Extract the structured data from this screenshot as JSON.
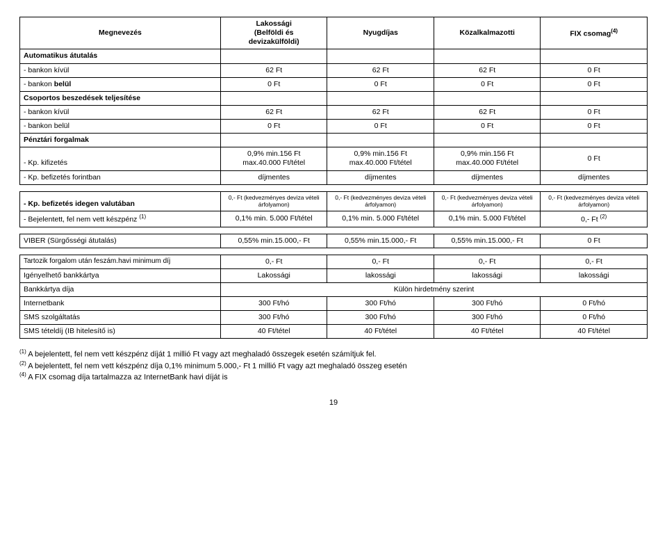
{
  "headers": {
    "col0": "Megnevezés",
    "col1": "Lakossági\n(Belföldi és\ndevizakülföldi)",
    "col2": "Nyugdíjas",
    "col3": "Közalkalmazotti",
    "col4": "FIX csomag",
    "col4_sup": "(4)"
  },
  "section1": "Automatikus átutalás",
  "row_bk1": {
    "label": " - bankon kívül",
    "v": [
      "62 Ft",
      "62 Ft",
      "62 Ft",
      "0 Ft"
    ]
  },
  "row_bb1": {
    "label": " - bankon ",
    "bold": "belül",
    "v": [
      "0 Ft",
      "0 Ft",
      "0 Ft",
      "0 Ft"
    ]
  },
  "section2": "Csoportos beszedések teljesítése",
  "row_bk2": {
    "label": " - bankon kívül",
    "v": [
      "62 Ft",
      "62 Ft",
      "62 Ft",
      "0 Ft"
    ]
  },
  "row_bb2": {
    "label": " - bankon belül",
    "v": [
      "0 Ft",
      "0 Ft",
      "0 Ft",
      "0 Ft"
    ]
  },
  "section3": "Pénztári forgalmak",
  "row_kif": {
    "label": " - Kp. kifizetés",
    "v": [
      "0,9% min.156 Ft\nmax.40.000 Ft/tétel",
      "0,9% min.156 Ft\nmax.40.000 Ft/tétel",
      "0,9% min.156 Ft\nmax.40.000 Ft/tétel",
      "0 Ft"
    ]
  },
  "row_befft": {
    "label": " - Kp. befizetés forintban",
    "v": [
      "díjmentes",
      "díjmentes",
      "díjmentes",
      "díjmentes"
    ]
  },
  "row_befiv": {
    "label": " - Kp. befizetés idegen valutában",
    "v": [
      "0,- Ft (kedvezményes deviza vételi árfolyamon)",
      "0,- Ft (kedvezményes deviza vételi árfolyamon)",
      "0,- Ft (kedvezményes deviza vételi árfolyamon)",
      "0,- Ft (kedvezményes deviza vételi árfolyamon)"
    ]
  },
  "row_bej": {
    "label": " -  Bejelentett, fel nem vett készpénz ",
    "sup": "(1)",
    "v": [
      "0,1% min. 5.000 Ft/tétel",
      "0,1% min. 5.000 Ft/tétel",
      "0,1% min. 5.000 Ft/tétel",
      "0,- Ft "
    ],
    "v4_sup": "(2)"
  },
  "row_viber": {
    "label": "VIBER (Sürgősségi átutalás)",
    "v": [
      "0,55% min.15.000,- Ft",
      "0,55% min.15.000,- Ft",
      "0,55% min.15.000,- Ft",
      "0 Ft"
    ]
  },
  "row_tart": {
    "label": "Tartozik forgalom után feszám.havi minimum díj",
    "v": [
      "0,- Ft",
      "0,- Ft",
      "0,- Ft",
      "0,- Ft"
    ]
  },
  "row_igeny": {
    "label": "Igényelhető bankkártya",
    "v": [
      "Lakossági",
      "lakossági",
      "lakossági",
      "lakossági"
    ]
  },
  "row_bankkartya": {
    "label": "Bankkártya díja",
    "span": "Külön hirdetmény szerint"
  },
  "row_internet": {
    "label": "Internetbank",
    "v": [
      "300 Ft/hó",
      "300 Ft/hó",
      "300 Ft/hó",
      "0 Ft/hó"
    ]
  },
  "row_sms": {
    "label": "SMS szolgáltatás",
    "v": [
      "300 Ft/hó",
      "300 Ft/hó",
      "300 Ft/hó",
      "0 Ft/hó"
    ]
  },
  "row_smstet": {
    "label": "SMS tételdíj (IB hitelesítő is)",
    "v": [
      "40 Ft/tétel",
      "40 Ft/tétel",
      "40 Ft/tétel",
      "40 Ft/tétel"
    ]
  },
  "footnotes": {
    "f1_sup": "(1)",
    "f1": " A bejelentett, fel nem vett készpénz díját 1 millió Ft vagy azt meghaladó összegek esetén számítjuk fel.",
    "f2_sup": "(2)",
    "f2": " A bejelentett, fel nem vett készpénz díja 0,1% minimum 5.000,- Ft 1 millió Ft vagy azt meghaladó összeg esetén",
    "f4_sup": "(4)",
    "f4": " A FIX csomag díja tartalmazza az InternetBank havi díját is"
  },
  "pagenum": "19"
}
